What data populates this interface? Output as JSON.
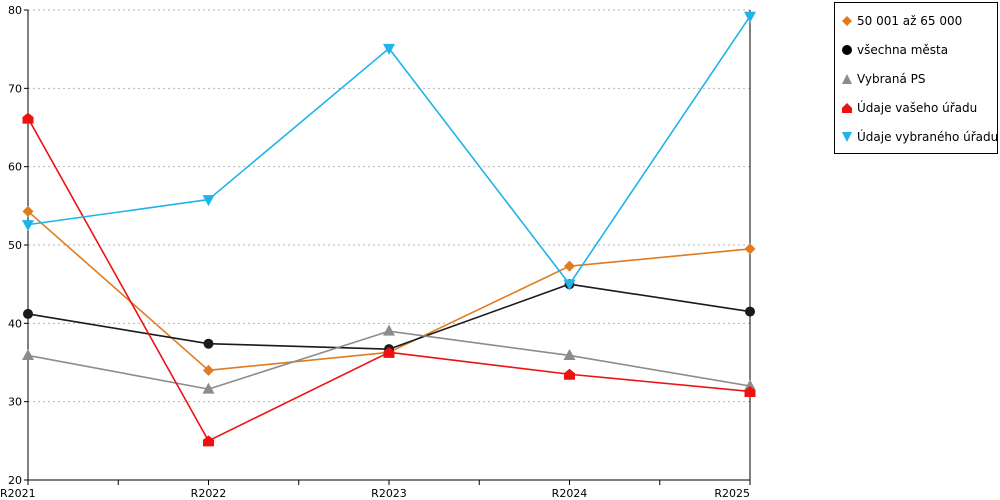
{
  "chart_data": {
    "type": "line",
    "categories": [
      "R2021",
      "R2022",
      "R2023",
      "R2024",
      "R2025"
    ],
    "ylim": [
      20,
      80
    ],
    "yticks": [
      "20",
      "30",
      "40",
      "50",
      "60",
      "70",
      "80"
    ],
    "grid": true,
    "legend_position": "right",
    "series": [
      {
        "name": "50 001 až 65 000",
        "color": "#E07B1F",
        "marker": "diamond",
        "values": [
          54.3,
          34.0,
          36.3,
          47.3,
          49.5
        ]
      },
      {
        "name": "všechna města",
        "color": "#1A1A1A",
        "marker": "circle",
        "values": [
          41.2,
          37.4,
          36.7,
          45.0,
          41.5
        ]
      },
      {
        "name": "Vybraná PS",
        "color": "#8C8C8C",
        "marker": "triangle-up",
        "values": [
          35.9,
          31.6,
          39.0,
          35.9,
          32.0
        ]
      },
      {
        "name": "Údaje vašeho úřadu",
        "color": "#EE1111",
        "marker": "house",
        "values": [
          66.2,
          25.0,
          36.3,
          33.5,
          31.3
        ]
      },
      {
        "name": "Údaje vybraného úřadu",
        "color": "#1EB4E8",
        "marker": "triangle-down",
        "values": [
          52.6,
          55.8,
          75.1,
          45.0,
          79.2
        ]
      }
    ]
  }
}
